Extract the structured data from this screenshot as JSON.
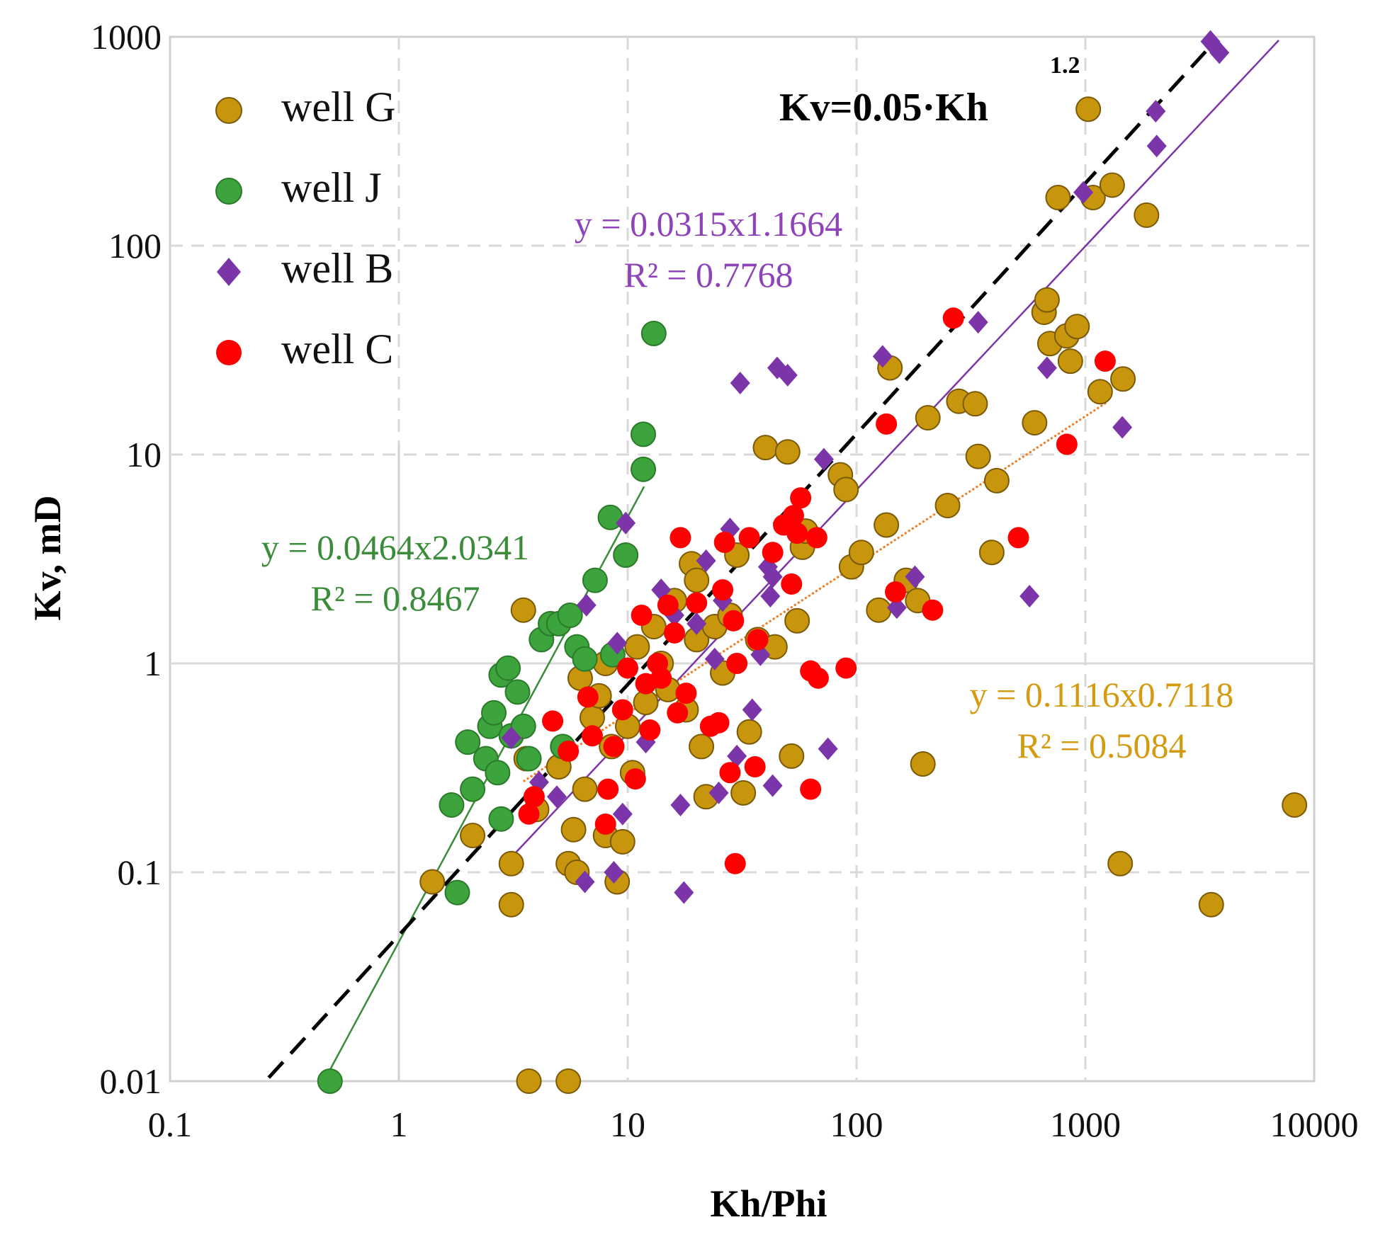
{
  "chart_data": {
    "type": "scatter",
    "xscale": "log",
    "yscale": "log",
    "xlim": [
      0.1,
      10000
    ],
    "ylim": [
      0.01,
      1000
    ],
    "xlabel": "Kh/Phi",
    "ylabel": "Kv, mD",
    "xticks": [
      "0.1",
      "1",
      "10",
      "100",
      "1000",
      "10000"
    ],
    "yticks": [
      "0.01",
      "0.1",
      "1",
      "10",
      "100",
      "1000"
    ],
    "grid": true,
    "legend_position": "top-left",
    "series": [
      {
        "name": "well G",
        "color": "#C8960C",
        "marker": "circle",
        "points": [
          [
            1.4,
            0.09
          ],
          [
            2.1,
            0.15
          ],
          [
            3.1,
            0.11
          ],
          [
            3.1,
            0.07
          ],
          [
            3.7,
            0.01
          ],
          [
            5.5,
            0.01
          ],
          [
            3.5,
            1.8
          ],
          [
            3.6,
            0.35
          ],
          [
            4.0,
            0.2
          ],
          [
            5.0,
            0.32
          ],
          [
            5.5,
            0.11
          ],
          [
            5.8,
            0.16
          ],
          [
            6.0,
            0.1
          ],
          [
            6.2,
            0.85
          ],
          [
            6.5,
            0.25
          ],
          [
            7.0,
            0.55
          ],
          [
            7.5,
            0.7
          ],
          [
            8.0,
            0.15
          ],
          [
            8.0,
            1.0
          ],
          [
            8.5,
            0.4
          ],
          [
            9.0,
            0.09
          ],
          [
            9.5,
            0.14
          ],
          [
            10.0,
            0.5
          ],
          [
            10.5,
            0.3
          ],
          [
            11.0,
            1.2
          ],
          [
            12.0,
            0.65
          ],
          [
            13.0,
            1.5
          ],
          [
            14.0,
            1.0
          ],
          [
            15.0,
            0.75
          ],
          [
            16.0,
            2.0
          ],
          [
            18.0,
            0.6
          ],
          [
            19.0,
            3.0
          ],
          [
            20.0,
            2.5
          ],
          [
            20.0,
            1.3
          ],
          [
            21.0,
            0.4
          ],
          [
            22.0,
            0.23
          ],
          [
            24.0,
            1.5
          ],
          [
            26.0,
            0.9
          ],
          [
            28.0,
            1.7
          ],
          [
            30.0,
            3.3
          ],
          [
            32.0,
            0.24
          ],
          [
            34.0,
            0.47
          ],
          [
            37.0,
            1.3
          ],
          [
            40.0,
            10.8
          ],
          [
            44.0,
            1.2
          ],
          [
            50.0,
            10.3
          ],
          [
            52.0,
            0.36
          ],
          [
            55.0,
            1.6
          ],
          [
            58.0,
            3.6
          ],
          [
            60.0,
            4.3
          ],
          [
            85.0,
            8.0
          ],
          [
            90.0,
            6.8
          ],
          [
            95.0,
            2.9
          ],
          [
            105.0,
            3.4
          ],
          [
            125.0,
            1.8
          ],
          [
            135.0,
            4.6
          ],
          [
            140.0,
            26.0
          ],
          [
            165.0,
            2.5
          ],
          [
            185.0,
            2.0
          ],
          [
            195.0,
            0.33
          ],
          [
            205.0,
            15.0
          ],
          [
            250.0,
            5.7
          ],
          [
            280.0,
            18.0
          ],
          [
            330.0,
            17.5
          ],
          [
            340.0,
            9.8
          ],
          [
            390.0,
            3.4
          ],
          [
            410.0,
            7.5
          ],
          [
            600.0,
            14.2
          ],
          [
            660.0,
            48.0
          ],
          [
            680.0,
            55.0
          ],
          [
            700.0,
            34.0
          ],
          [
            760.0,
            170.0
          ],
          [
            830.0,
            37.0
          ],
          [
            860.0,
            28.0
          ],
          [
            920.0,
            41.0
          ],
          [
            1030.0,
            450.0
          ],
          [
            1080.0,
            170.0
          ],
          [
            1160.0,
            20.0
          ],
          [
            1310.0,
            195.0
          ],
          [
            1420.0,
            0.11
          ],
          [
            1460.0,
            23.0
          ],
          [
            1850.0,
            140.0
          ],
          [
            3550.0,
            0.07
          ],
          [
            8200.0,
            0.21
          ]
        ]
      },
      {
        "name": "well J",
        "color": "#3DA33D",
        "marker": "circle",
        "points": [
          [
            0.5,
            0.01
          ],
          [
            1.7,
            0.21
          ],
          [
            1.8,
            0.08
          ],
          [
            2.0,
            0.42
          ],
          [
            2.1,
            0.25
          ],
          [
            2.4,
            0.35
          ],
          [
            2.5,
            0.5
          ],
          [
            2.6,
            0.58
          ],
          [
            2.7,
            0.3
          ],
          [
            2.8,
            0.88
          ],
          [
            2.8,
            0.18
          ],
          [
            3.0,
            0.95
          ],
          [
            3.1,
            0.45
          ],
          [
            3.3,
            0.73
          ],
          [
            3.5,
            0.5
          ],
          [
            3.7,
            0.35
          ],
          [
            4.2,
            1.3
          ],
          [
            4.6,
            1.55
          ],
          [
            5.0,
            1.55
          ],
          [
            5.2,
            0.4
          ],
          [
            5.6,
            1.7
          ],
          [
            6.0,
            1.2
          ],
          [
            6.5,
            1.05
          ],
          [
            7.2,
            2.5
          ],
          [
            8.4,
            5.0
          ],
          [
            8.6,
            1.1
          ],
          [
            9.8,
            3.3
          ],
          [
            11.7,
            8.5
          ],
          [
            11.7,
            12.5
          ],
          [
            13.0,
            38.0
          ]
        ]
      },
      {
        "name": "well B",
        "color": "#7B35A8",
        "marker": "diamond",
        "points": [
          [
            3.1,
            0.44
          ],
          [
            4.1,
            0.27
          ],
          [
            4.9,
            0.23
          ],
          [
            6.5,
            0.09
          ],
          [
            6.6,
            1.9
          ],
          [
            8.7,
            0.1
          ],
          [
            9.0,
            1.25
          ],
          [
            9.5,
            0.19
          ],
          [
            9.8,
            4.7
          ],
          [
            12.0,
            0.42
          ],
          [
            14.0,
            2.25
          ],
          [
            16.0,
            1.7
          ],
          [
            17.0,
            0.21
          ],
          [
            17.6,
            0.08
          ],
          [
            20.0,
            1.55
          ],
          [
            22.0,
            3.1
          ],
          [
            24.0,
            1.05
          ],
          [
            25.0,
            0.24
          ],
          [
            26.0,
            2.0
          ],
          [
            28.0,
            4.4
          ],
          [
            30.0,
            0.36
          ],
          [
            31.0,
            22.0
          ],
          [
            35.0,
            0.6
          ],
          [
            38.0,
            1.1
          ],
          [
            41.0,
            2.9
          ],
          [
            42.0,
            2.1
          ],
          [
            43.0,
            2.6
          ],
          [
            43.0,
            0.26
          ],
          [
            45.0,
            26.0
          ],
          [
            50.0,
            24.0
          ],
          [
            72.0,
            9.5
          ],
          [
            75.0,
            0.39
          ],
          [
            130.0,
            29.5
          ],
          [
            150.0,
            1.85
          ],
          [
            180.0,
            2.6
          ],
          [
            340.0,
            43.0
          ],
          [
            570.0,
            2.1
          ],
          [
            680.0,
            26.0
          ],
          [
            980.0,
            180.0
          ],
          [
            1450.0,
            13.5
          ],
          [
            2030.0,
            440.0
          ],
          [
            2050.0,
            300.0
          ],
          [
            3520.0,
            950.0
          ],
          [
            3850.0,
            840.0
          ]
        ]
      },
      {
        "name": "well C",
        "color": "#FF0000",
        "marker": "circle",
        "points": [
          [
            3.7,
            0.19
          ],
          [
            3.9,
            0.23
          ],
          [
            4.7,
            0.53
          ],
          [
            5.5,
            0.38
          ],
          [
            6.7,
            0.69
          ],
          [
            7.0,
            0.45
          ],
          [
            8.0,
            0.17
          ],
          [
            8.2,
            0.25
          ],
          [
            8.7,
            0.4
          ],
          [
            9.5,
            0.6
          ],
          [
            10.0,
            0.95
          ],
          [
            10.8,
            0.28
          ],
          [
            11.5,
            1.7
          ],
          [
            12.0,
            0.8
          ],
          [
            12.5,
            0.48
          ],
          [
            13.5,
            1.0
          ],
          [
            14.0,
            0.85
          ],
          [
            15.0,
            1.9
          ],
          [
            16.0,
            1.4
          ],
          [
            16.5,
            0.58
          ],
          [
            17.0,
            4.0
          ],
          [
            18.0,
            0.72
          ],
          [
            20.0,
            1.95
          ],
          [
            23.0,
            0.5
          ],
          [
            25.0,
            0.52
          ],
          [
            26.0,
            2.25
          ],
          [
            26.5,
            3.8
          ],
          [
            28.0,
            0.3
          ],
          [
            29.0,
            1.6
          ],
          [
            29.5,
            0.11
          ],
          [
            30.0,
            1.0
          ],
          [
            34.0,
            4.0
          ],
          [
            36.0,
            0.32
          ],
          [
            37.0,
            1.3
          ],
          [
            43.0,
            3.4
          ],
          [
            48.0,
            4.6
          ],
          [
            52.0,
            2.4
          ],
          [
            53.0,
            5.1
          ],
          [
            55.0,
            4.2
          ],
          [
            57.0,
            6.2
          ],
          [
            63.0,
            0.25
          ],
          [
            63.0,
            0.92
          ],
          [
            67.0,
            4.0
          ],
          [
            68.0,
            0.85
          ],
          [
            90.0,
            0.95
          ],
          [
            135.0,
            14.0
          ],
          [
            148.0,
            2.2
          ],
          [
            215.0,
            1.8
          ],
          [
            265.0,
            45.0
          ],
          [
            510.0,
            4.0
          ],
          [
            830.0,
            11.2
          ],
          [
            1220.0,
            28.0
          ]
        ]
      }
    ],
    "trendlines": [
      {
        "series": "well J",
        "equation": "y = 0.0464x2.0341",
        "r2": "R² = 0.8467",
        "a": 0.0464,
        "b": 2.0341,
        "x_range": [
          0.5,
          11.8
        ],
        "color": "#3A8C3A"
      },
      {
        "series": "well B",
        "equation": "y = 0.0315x1.1664",
        "r2": "R² = 0.7768",
        "a": 0.0315,
        "b": 1.1664,
        "x_range": [
          3.1,
          7000
        ],
        "color": "#7B35A8"
      },
      {
        "series": "well G",
        "equation": "y = 0.1116x0.7118",
        "r2": "R² = 0.5084",
        "a": 0.1116,
        "b": 0.7118,
        "x_range": [
          3.5,
          1250
        ],
        "color": "#F07A1E"
      }
    ],
    "reference_line": {
      "label": "Kv=0.05·Kh",
      "exponent_label": "1.2",
      "a": 0.05,
      "b": 1.2,
      "x_range": [
        0.27,
        3600
      ],
      "color": "#000000",
      "style": "dashed"
    },
    "annotations": [
      {
        "id": "J",
        "line1": "y = 0.0464x2.0341",
        "line2": "R² = 0.8467",
        "color": "#3A8C3A"
      },
      {
        "id": "B",
        "line1": "y = 0.0315x1.1664",
        "line2": "R² = 0.7768",
        "color": "#8E44B8"
      },
      {
        "id": "G",
        "line1": "y = 0.1116x0.7118",
        "line2": "R² = 0.5084",
        "color": "#D49A10"
      }
    ]
  }
}
